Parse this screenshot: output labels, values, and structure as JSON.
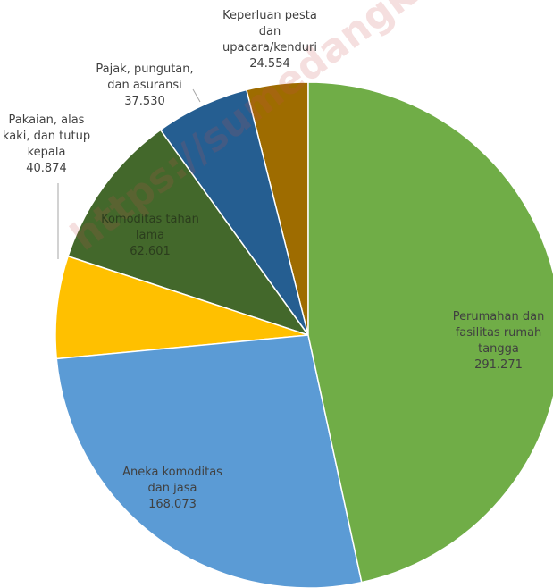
{
  "chart_data": {
    "type": "pie",
    "categories": [
      "Perumahan dan fasilitas rumah tangga",
      "Aneka komoditas dan jasa",
      "Pakaian, alas kaki, dan tutup kepala",
      "Komoditas tahan lama",
      "Pajak, pungutan, dan asuransi",
      "Keperluan pesta dan upacara/kenduri"
    ],
    "values": [
      291271,
      168073,
      40874,
      62601,
      37530,
      24554
    ],
    "value_labels": [
      "291.271",
      "168.073",
      "40.874",
      "62.601",
      "37.530",
      "24.554"
    ],
    "colors": [
      "#70ad47",
      "#5b9bd5",
      "#ffc000",
      "#43682b",
      "#255e91",
      "#9e6c00"
    ],
    "watermark": "https://sumedangkab.bps.go"
  }
}
